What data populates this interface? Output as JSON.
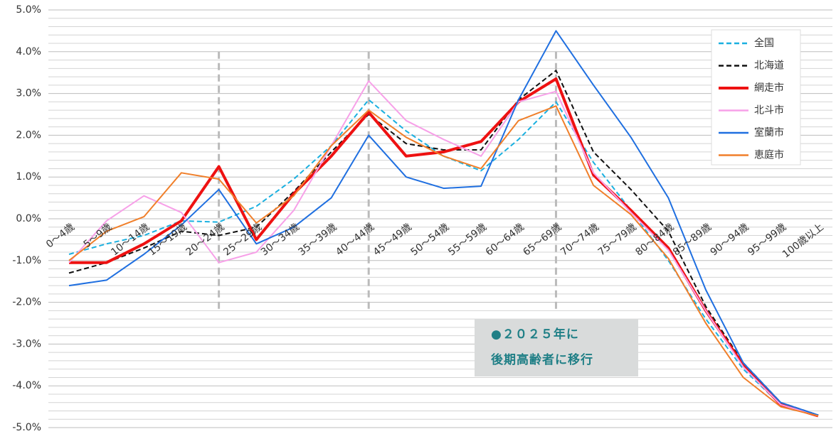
{
  "chart_data": {
    "type": "line",
    "categories": [
      "0～4歳",
      "5～9歳",
      "10～14歳",
      "15～19歳",
      "20～24歳",
      "25～29歳",
      "30～34歳",
      "35～39歳",
      "40～44歳",
      "45～49歳",
      "50～54歳",
      "55～59歳",
      "60～64歳",
      "65～69歳",
      "70～74歳",
      "75～79歳",
      "80～84歳",
      "85～89歳",
      "90～94歳",
      "95～99歳",
      "100歳以上"
    ],
    "series": [
      {
        "name": "全国",
        "color": "#1ab0e0",
        "dashed": true,
        "values": [
          -0.85,
          -0.6,
          -0.4,
          -0.05,
          -0.08,
          0.3,
          0.95,
          1.75,
          2.85,
          2.1,
          1.5,
          1.15,
          1.9,
          2.8,
          1.35,
          0.2,
          -1.0,
          -2.4,
          -3.6,
          -4.45,
          -4.7
        ]
      },
      {
        "name": "北海道",
        "color": "#111111",
        "dashed": true,
        "values": [
          -1.3,
          -1.05,
          -0.7,
          -0.3,
          -0.4,
          -0.2,
          0.65,
          1.6,
          2.5,
          1.8,
          1.65,
          1.65,
          2.85,
          3.55,
          1.6,
          0.7,
          -0.3,
          -2.1,
          -3.45,
          -4.4,
          -4.7
        ]
      },
      {
        "name": "網走市",
        "color": "#ee1111",
        "width": 4,
        "values": [
          -1.05,
          -1.05,
          -0.6,
          -0.05,
          1.25,
          -0.5,
          0.6,
          1.5,
          2.55,
          1.5,
          1.6,
          1.85,
          2.8,
          3.35,
          1.05,
          0.2,
          -0.7,
          -2.2,
          -3.5,
          -4.45,
          -4.72
        ]
      },
      {
        "name": "北斗市",
        "color": "#f7a0e8",
        "values": [
          -1.05,
          -0.05,
          0.55,
          0.15,
          -1.05,
          -0.8,
          0.2,
          1.75,
          3.3,
          2.35,
          1.9,
          1.5,
          2.8,
          3.05,
          1.1,
          0.15,
          -0.75,
          -2.2,
          -3.55,
          -4.45,
          -4.72
        ]
      },
      {
        "name": "室蘭市",
        "color": "#1f6fe0",
        "values": [
          -1.6,
          -1.47,
          -0.85,
          -0.15,
          0.7,
          -0.6,
          -0.2,
          0.5,
          2.0,
          1.0,
          0.73,
          0.78,
          2.85,
          4.5,
          3.2,
          1.95,
          0.5,
          -1.7,
          -3.45,
          -4.4,
          -4.7
        ]
      },
      {
        "name": "恵庭市",
        "color": "#f07f2a",
        "values": [
          -1.0,
          -0.3,
          0.05,
          1.1,
          0.95,
          -0.1,
          0.55,
          1.75,
          2.6,
          1.95,
          1.5,
          1.2,
          2.35,
          2.7,
          0.8,
          0.1,
          -0.95,
          -2.5,
          -3.8,
          -4.5,
          -4.72
        ]
      }
    ],
    "ylim": [
      -5,
      5
    ],
    "yticks": [
      {
        "value": 5,
        "label": "5.0%"
      },
      {
        "value": 4,
        "label": "4.0%"
      },
      {
        "value": 3,
        "label": "3.0%"
      },
      {
        "value": 2,
        "label": "2.0%"
      },
      {
        "value": 1,
        "label": "1.0%"
      },
      {
        "value": 0,
        "label": "0.0%"
      },
      {
        "value": -1,
        "label": "-1.0%"
      },
      {
        "value": -2,
        "label": "-2.0%"
      },
      {
        "value": -3,
        "label": "-3.0%"
      },
      {
        "value": -4,
        "label": "-4.0%"
      },
      {
        "value": -5,
        "label": "-5.0%"
      }
    ],
    "minor_yticks": [
      -4.8,
      -4.6,
      -4.4,
      -4.2,
      -3.8,
      -3.6,
      -3.4,
      -3.2,
      -2.8,
      -2.6,
      -2.4,
      -2.2,
      -1.8,
      -1.6,
      -1.4,
      -1.2,
      -0.8,
      -0.6,
      -0.4,
      -0.2,
      0.2,
      0.4,
      0.6,
      0.8,
      1.2,
      1.4,
      1.6,
      1.8,
      2.2,
      2.4,
      2.6,
      2.8,
      3.2,
      3.4,
      3.6,
      3.8,
      4.2,
      4.4,
      4.6,
      4.8
    ],
    "grid": true,
    "legend": "upper right",
    "vlines": [
      4,
      8,
      13
    ],
    "vline_range": [
      -2.25,
      4.0
    ],
    "annotation": {
      "lines": [
        "●２０２５年に",
        "後期高齢者に移行"
      ]
    }
  }
}
